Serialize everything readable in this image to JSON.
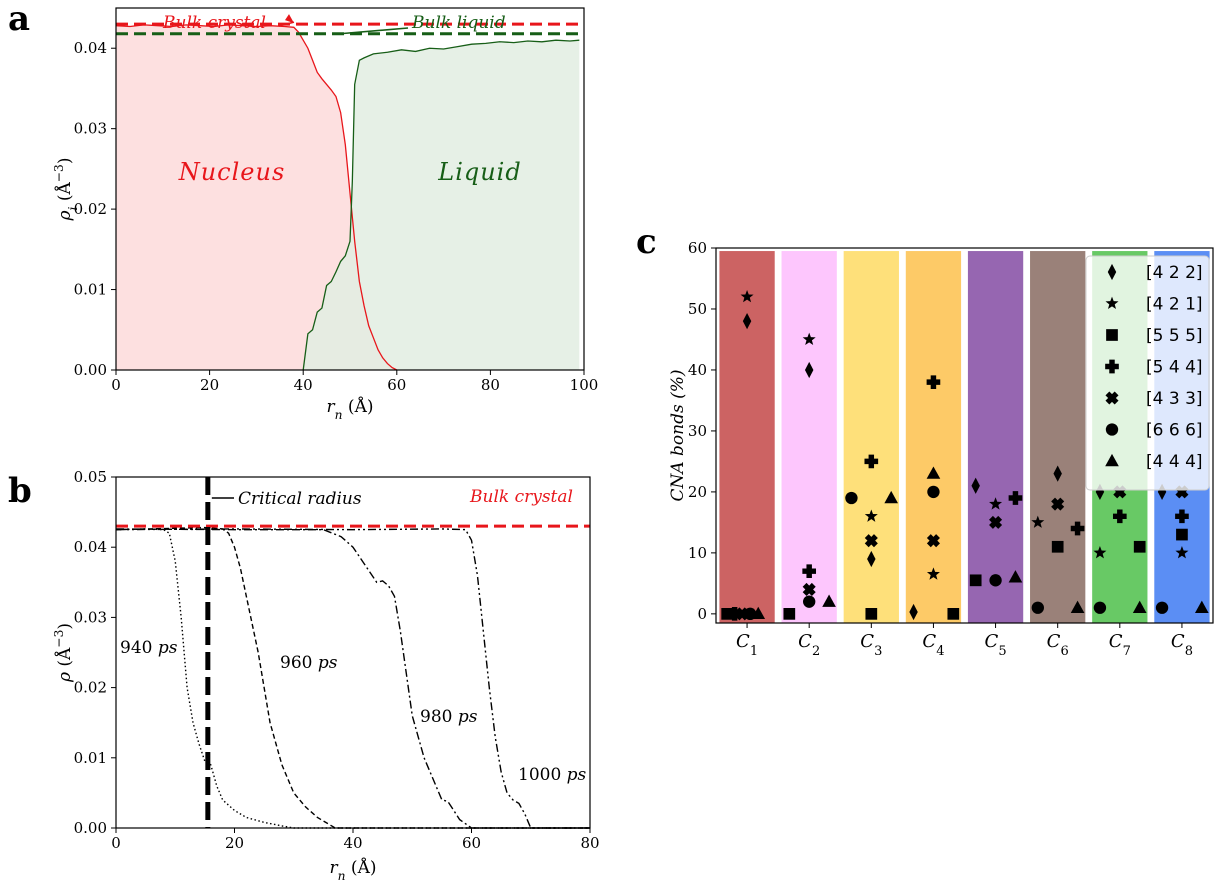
{
  "panels": {
    "a": {
      "letter": "a"
    },
    "b": {
      "letter": "b"
    },
    "c": {
      "letter": "c"
    }
  },
  "chart_data": [
    {
      "id": "a",
      "type": "area",
      "xlabel": "r_n (Å)",
      "ylabel": "ρ_i (Å^-3)",
      "xlim": [
        0,
        100
      ],
      "ylim": [
        0,
        0.045
      ],
      "xticks": [
        0,
        20,
        40,
        60,
        80,
        100
      ],
      "yticks": [
        0.0,
        0.01,
        0.02,
        0.03,
        0.04
      ],
      "ytick_labels": [
        "0.00",
        "0.01",
        "0.02",
        "0.03",
        "0.04"
      ],
      "region_labels": {
        "nucleus": "Nucleus",
        "liquid": "Liquid"
      },
      "reference_lines": [
        {
          "name": "Bulk crystal",
          "y": 0.043,
          "color": "#e8161b"
        },
        {
          "name": "Bulk liquid",
          "y": 0.0418,
          "color": "#175e17"
        }
      ],
      "series": [
        {
          "name": "Nucleus",
          "color": "#e8161b",
          "fill": "#fde0e0",
          "x": [
            0,
            3,
            6,
            9,
            12,
            15,
            18,
            21,
            24,
            27,
            30,
            33,
            36,
            38,
            39,
            40,
            41,
            42,
            43,
            44,
            45,
            46,
            47,
            48,
            49,
            50,
            51,
            52,
            53,
            54,
            55,
            56,
            57,
            58,
            59,
            60
          ],
          "y": [
            0.0428,
            0.0427,
            0.0429,
            0.0428,
            0.0427,
            0.0429,
            0.0428,
            0.0427,
            0.0429,
            0.0428,
            0.0427,
            0.0428,
            0.0427,
            0.0426,
            0.042,
            0.041,
            0.04,
            0.0385,
            0.037,
            0.0362,
            0.0355,
            0.0348,
            0.034,
            0.032,
            0.028,
            0.022,
            0.016,
            0.011,
            0.008,
            0.0055,
            0.004,
            0.0025,
            0.0015,
            0.0008,
            0.0003,
            0.0
          ]
        },
        {
          "name": "Liquid",
          "color": "#175e17",
          "fill": "#e2ede2",
          "x": [
            40,
            41,
            42,
            43,
            44,
            45,
            46,
            47,
            48,
            49,
            50,
            50.5,
            51,
            52,
            53,
            55,
            58,
            61,
            64,
            67,
            70,
            73,
            76,
            79,
            82,
            85,
            88,
            91,
            94,
            97,
            99
          ],
          "y": [
            0.0,
            0.0045,
            0.005,
            0.0072,
            0.0077,
            0.0105,
            0.011,
            0.0122,
            0.0135,
            0.0142,
            0.016,
            0.0235,
            0.0355,
            0.0385,
            0.0388,
            0.0393,
            0.0395,
            0.0398,
            0.0396,
            0.04,
            0.0399,
            0.0402,
            0.0405,
            0.0406,
            0.0408,
            0.0407,
            0.0409,
            0.0408,
            0.041,
            0.0409,
            0.041
          ]
        }
      ]
    },
    {
      "id": "b",
      "type": "line",
      "xlabel": "r_n (Å)",
      "ylabel": "ρ (Å^-3)",
      "xlim": [
        0,
        80
      ],
      "ylim": [
        0,
        0.05
      ],
      "xticks": [
        0,
        20,
        40,
        60,
        80
      ],
      "yticks": [
        0.0,
        0.01,
        0.02,
        0.03,
        0.04,
        0.05
      ],
      "ytick_labels": [
        "0.00",
        "0.01",
        "0.02",
        "0.03",
        "0.04",
        "0.05"
      ],
      "reference_lines": [
        {
          "name": "Bulk crystal",
          "y": 0.043,
          "color": "#e8161b",
          "orientation": "horizontal"
        },
        {
          "name": "Critical radius",
          "x": 15.5,
          "color": "#000000",
          "orientation": "vertical"
        }
      ],
      "series": [
        {
          "name": "940 ps",
          "dash": "dotted",
          "x": [
            0,
            5,
            8,
            9,
            10,
            11,
            12,
            13,
            14,
            15,
            16,
            17,
            18,
            20,
            22,
            25,
            28,
            30,
            80
          ],
          "y": [
            0.0425,
            0.0426,
            0.0425,
            0.042,
            0.038,
            0.03,
            0.02,
            0.015,
            0.012,
            0.0095,
            0.009,
            0.006,
            0.004,
            0.0025,
            0.0015,
            0.0008,
            0.0003,
            0.0,
            0.0
          ]
        },
        {
          "name": "960 ps",
          "dash": "dashed",
          "x": [
            0,
            10,
            15,
            18,
            19,
            20,
            21,
            22,
            24,
            26,
            28,
            30,
            32,
            34,
            36,
            37,
            80
          ],
          "y": [
            0.0425,
            0.0427,
            0.0428,
            0.0426,
            0.042,
            0.04,
            0.037,
            0.033,
            0.025,
            0.015,
            0.009,
            0.005,
            0.003,
            0.0015,
            0.0005,
            0.0,
            0.0
          ]
        },
        {
          "name": "980 ps",
          "dash": "dashdot",
          "x": [
            0,
            20,
            35,
            38,
            40,
            42,
            44,
            45,
            46,
            47,
            48,
            49,
            50,
            52,
            54,
            55,
            56,
            57,
            58,
            60,
            80
          ],
          "y": [
            0.0426,
            0.0425,
            0.0425,
            0.0415,
            0.04,
            0.0375,
            0.035,
            0.0352,
            0.0345,
            0.033,
            0.028,
            0.022,
            0.016,
            0.01,
            0.006,
            0.004,
            0.0038,
            0.0025,
            0.0012,
            0.0,
            0.0
          ]
        },
        {
          "name": "1000 ps",
          "dash": "dashdotdot",
          "x": [
            0,
            20,
            40,
            55,
            59,
            60,
            61,
            62,
            63,
            64,
            65,
            66,
            67,
            68,
            69,
            70,
            80
          ],
          "y": [
            0.0425,
            0.0426,
            0.0425,
            0.0426,
            0.0425,
            0.041,
            0.036,
            0.028,
            0.02,
            0.013,
            0.008,
            0.005,
            0.004,
            0.0035,
            0.002,
            0.0,
            0.0
          ]
        }
      ]
    },
    {
      "id": "c",
      "type": "scatter",
      "xlabel": "",
      "ylabel": "CNA bonds (%)",
      "ylim": [
        -1.5,
        60
      ],
      "yticks": [
        0,
        10,
        20,
        30,
        40,
        50,
        60
      ],
      "categories": [
        "C1",
        "C2",
        "C3",
        "C4",
        "C5",
        "C6",
        "C7",
        "C8"
      ],
      "category_colors": [
        "#cc6363",
        "#fdc6fd",
        "#fee07a",
        "#fdca67",
        "#9666b1",
        "#9a8179",
        "#68c965",
        "#5b8ef4"
      ],
      "legend_position": "top-right",
      "series": [
        {
          "name": "[4 2 2]",
          "marker": "diamond",
          "values": [
            48,
            40,
            9,
            0.3,
            21,
            23,
            20,
            20
          ],
          "offsets": [
            0,
            0,
            0,
            -0.32,
            -0.32,
            0,
            -0.32,
            -0.32
          ]
        },
        {
          "name": "[4 2 1]",
          "marker": "star",
          "values": [
            52,
            45,
            16,
            6.5,
            18,
            15,
            10,
            10
          ],
          "offsets": [
            0,
            0,
            0,
            0,
            0,
            -0.32,
            -0.32,
            0
          ]
        },
        {
          "name": "[5 5 5]",
          "marker": "square",
          "values": [
            0,
            0,
            0,
            0,
            5.5,
            11,
            11,
            13
          ],
          "offsets": [
            -0.32,
            -0.32,
            0,
            0.32,
            -0.32,
            0,
            0.32,
            0
          ]
        },
        {
          "name": "[5 4 4]",
          "marker": "plus",
          "values": [
            0,
            7,
            25,
            38,
            19,
            14,
            16,
            16
          ],
          "offsets": [
            -0.2,
            0,
            0,
            0,
            0.32,
            0.32,
            0,
            0
          ]
        },
        {
          "name": "[4 3 3]",
          "marker": "x",
          "values": [
            0,
            4,
            12,
            12,
            15,
            18,
            20,
            20
          ],
          "offsets": [
            -0.08,
            0,
            0,
            0,
            0,
            0,
            0,
            0
          ]
        },
        {
          "name": "[6 6 6]",
          "marker": "circle",
          "values": [
            0,
            2,
            19,
            20,
            5.5,
            1,
            1,
            1
          ],
          "offsets": [
            0.05,
            0,
            -0.32,
            0,
            0,
            -0.32,
            -0.32,
            -0.32
          ]
        },
        {
          "name": "[4 4 4]",
          "marker": "triangle",
          "values": [
            0,
            2,
            19,
            23,
            6,
            1,
            1,
            1
          ],
          "offsets": [
            0.18,
            0.32,
            0.32,
            0,
            0.32,
            0.32,
            0.32,
            0.32
          ]
        }
      ]
    }
  ]
}
